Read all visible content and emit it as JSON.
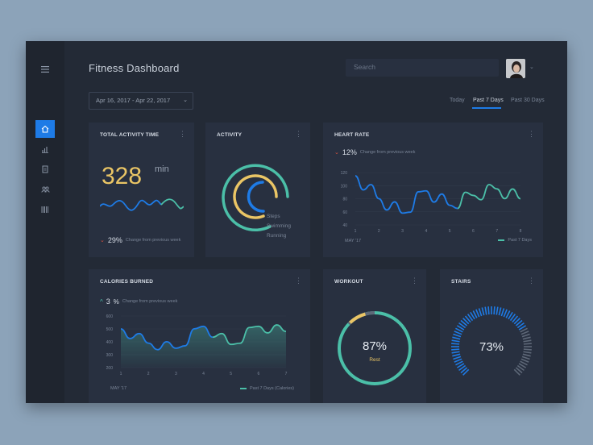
{
  "app": {
    "title": "Fitness Dashboard",
    "search": {
      "placeholder": "Search"
    },
    "date_range": "Apr 16, 2017 - Apr 22, 2017",
    "tabs": [
      {
        "label": "Today",
        "active": false
      },
      {
        "label": "Past 7 Days",
        "active": true
      },
      {
        "label": "Past 30 Days",
        "active": false
      }
    ],
    "sidebar_icons": [
      "home-icon",
      "bar-chart-icon",
      "document-icon",
      "users-icon",
      "barcode-icon"
    ]
  },
  "colors": {
    "accent": "#1e7be6",
    "yellow": "#eac565",
    "teal": "#4bbfa8",
    "grey": "#5e6878",
    "red": "#e0533f"
  },
  "cards": {
    "total_activity": {
      "title": "TOTAL ACTIVITY TIME",
      "value": "328",
      "unit": "min",
      "change": "29%",
      "change_direction": "down",
      "change_label": "Change from previous week"
    },
    "activity": {
      "title": "ACTIVITY",
      "legend": [
        {
          "label": "Steps",
          "color": "#1e7be6"
        },
        {
          "label": "Swimming",
          "color": "#eac565"
        },
        {
          "label": "Running",
          "color": "#4bbfa8"
        }
      ]
    },
    "heart_rate": {
      "title": "HEART RATE",
      "change": "12%",
      "change_direction": "down",
      "change_label": "Change from previous week",
      "month_label": "MAY '17",
      "legend": "Past 7 Days"
    },
    "calories": {
      "title": "CALORIES BURNED",
      "change": "3",
      "change_unit": "%",
      "change_direction": "up",
      "change_label": "Change from previous week",
      "month_label": "MAY '17",
      "legend": "Past 7 Days (Calories)"
    },
    "workout": {
      "title": "WORKOUT",
      "value": "87%",
      "label": "Rest",
      "progress": 0.87
    },
    "stairs": {
      "title": "STAIRS",
      "value": "73%",
      "progress": 0.73
    }
  },
  "chart_data": [
    {
      "type": "line",
      "title": "HEART RATE",
      "x": [
        1,
        2,
        3,
        4,
        5,
        6,
        7,
        8
      ],
      "ylim": [
        60,
        120
      ],
      "yticks": [
        120,
        100,
        80,
        60,
        40
      ],
      "series": [
        {
          "name": "Past 7 Days",
          "values": [
            115,
            80,
            58,
            92,
            70,
            85,
            95,
            80
          ]
        }
      ]
    },
    {
      "type": "area",
      "title": "CALORIES BURNED",
      "x": [
        1,
        2,
        3,
        4,
        5,
        6,
        7
      ],
      "ylim": [
        300,
        600
      ],
      "yticks": [
        600,
        500,
        400,
        300,
        200
      ],
      "series": [
        {
          "name": "Past 7 Days (Calories)",
          "values": [
            500,
            390,
            350,
            520,
            380,
            520,
            480
          ]
        }
      ]
    }
  ]
}
